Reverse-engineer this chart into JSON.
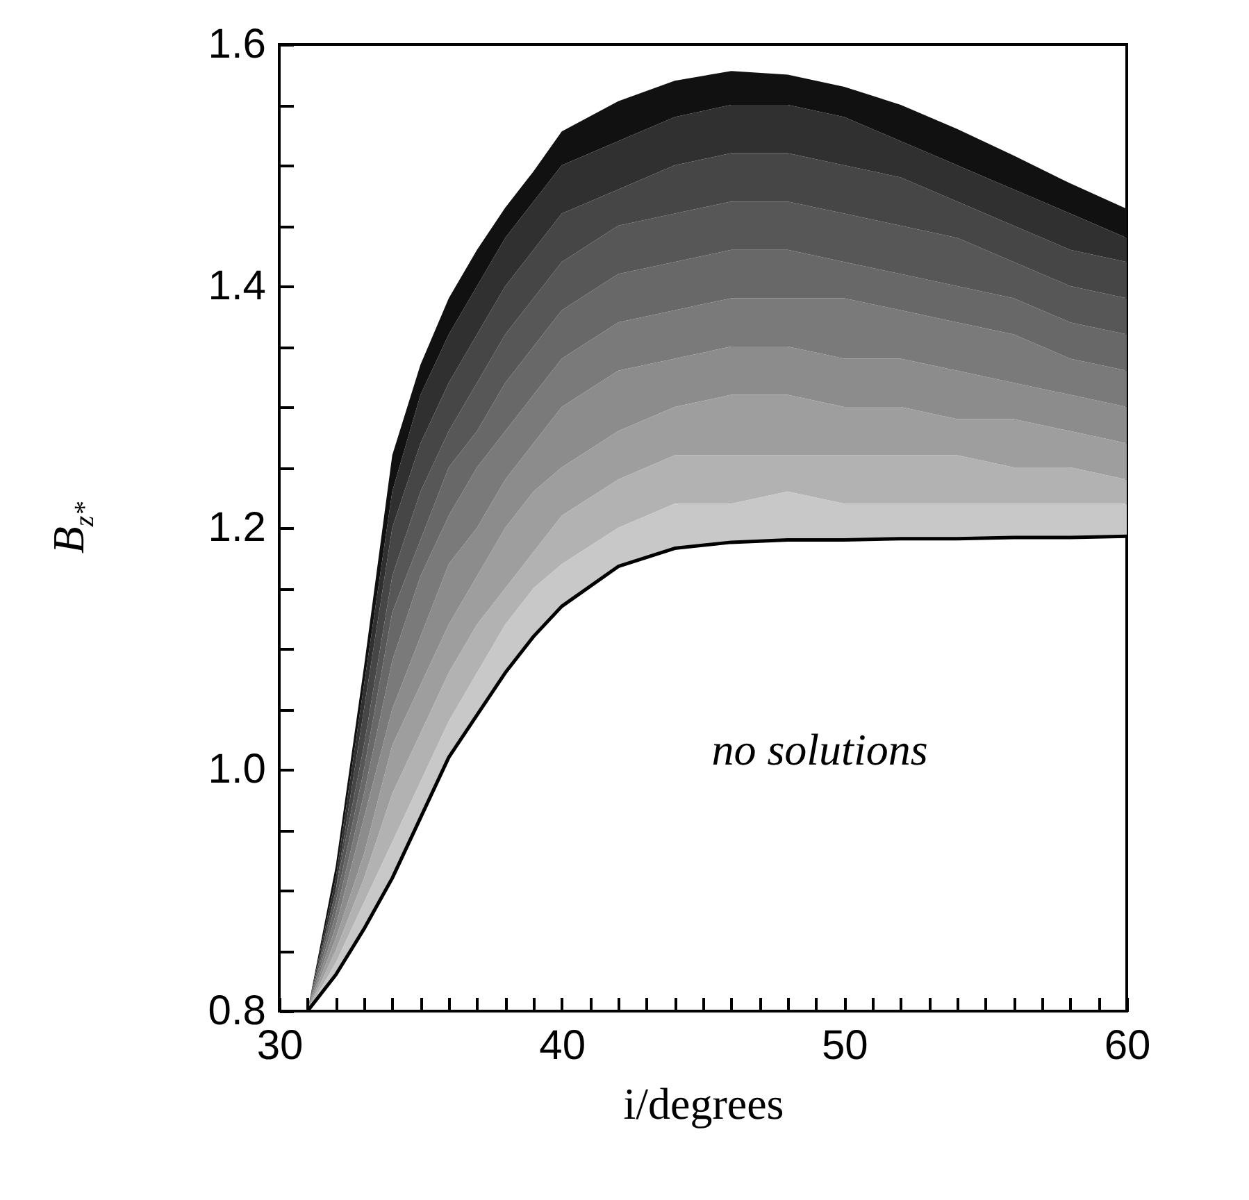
{
  "chart_data": {
    "type": "area",
    "xlabel": "i/degrees",
    "ylabel": "B$_{z*}$",
    "x": [
      31,
      32,
      33,
      34,
      35,
      36,
      37,
      38,
      39,
      40,
      42,
      44,
      46,
      48,
      50,
      52,
      54,
      56,
      58,
      60
    ],
    "series": [
      {
        "color": "#111111",
        "values": [
          0.8,
          0.92,
          1.085,
          1.26,
          1.335,
          1.39,
          1.43,
          1.465,
          1.495,
          1.528,
          1.553,
          1.57,
          1.578,
          1.575,
          1.565,
          1.55,
          1.53,
          1.508,
          1.485,
          1.464
        ]
      },
      {
        "color": "#303030",
        "values": [
          0.8,
          0.91,
          1.07,
          1.23,
          1.31,
          1.36,
          1.4,
          1.44,
          1.47,
          1.5,
          1.52,
          1.54,
          1.55,
          1.55,
          1.54,
          1.52,
          1.5,
          1.48,
          1.46,
          1.44
        ]
      },
      {
        "color": "#464646",
        "values": [
          0.8,
          0.9,
          1.05,
          1.2,
          1.27,
          1.32,
          1.36,
          1.4,
          1.43,
          1.46,
          1.48,
          1.5,
          1.51,
          1.51,
          1.5,
          1.49,
          1.47,
          1.45,
          1.43,
          1.42
        ]
      },
      {
        "color": "#575757",
        "values": [
          0.8,
          0.9,
          1.02,
          1.16,
          1.23,
          1.28,
          1.32,
          1.36,
          1.39,
          1.42,
          1.45,
          1.46,
          1.47,
          1.47,
          1.46,
          1.45,
          1.44,
          1.42,
          1.4,
          1.39
        ]
      },
      {
        "color": "#686868",
        "values": [
          0.8,
          0.89,
          1.0,
          1.13,
          1.19,
          1.25,
          1.28,
          1.32,
          1.35,
          1.38,
          1.41,
          1.42,
          1.43,
          1.43,
          1.42,
          1.41,
          1.4,
          1.39,
          1.37,
          1.36
        ]
      },
      {
        "color": "#7a7a7a",
        "values": [
          0.8,
          0.88,
          0.98,
          1.09,
          1.16,
          1.21,
          1.25,
          1.28,
          1.31,
          1.34,
          1.37,
          1.38,
          1.39,
          1.39,
          1.39,
          1.38,
          1.37,
          1.36,
          1.34,
          1.33
        ]
      },
      {
        "color": "#8c8c8c",
        "values": [
          0.8,
          0.87,
          0.96,
          1.05,
          1.11,
          1.17,
          1.2,
          1.24,
          1.27,
          1.3,
          1.33,
          1.34,
          1.35,
          1.35,
          1.34,
          1.34,
          1.33,
          1.32,
          1.31,
          1.3
        ]
      },
      {
        "color": "#9e9e9e",
        "values": [
          0.8,
          0.86,
          0.93,
          1.02,
          1.07,
          1.12,
          1.16,
          1.2,
          1.23,
          1.25,
          1.28,
          1.3,
          1.31,
          1.31,
          1.3,
          1.3,
          1.29,
          1.29,
          1.28,
          1.27
        ]
      },
      {
        "color": "#b2b2b2",
        "values": [
          0.8,
          0.85,
          0.91,
          0.98,
          1.03,
          1.08,
          1.12,
          1.15,
          1.18,
          1.21,
          1.24,
          1.26,
          1.26,
          1.26,
          1.26,
          1.26,
          1.26,
          1.25,
          1.25,
          1.24
        ]
      },
      {
        "color": "#c8c8c8",
        "values": [
          0.8,
          0.84,
          0.89,
          0.94,
          0.99,
          1.04,
          1.08,
          1.12,
          1.15,
          1.17,
          1.2,
          1.22,
          1.22,
          1.23,
          1.22,
          1.22,
          1.22,
          1.22,
          1.22,
          1.22
        ]
      },
      {
        "type": "line",
        "color": "#000000",
        "values": [
          0.8,
          0.83,
          0.868,
          0.91,
          0.96,
          1.01,
          1.045,
          1.08,
          1.11,
          1.135,
          1.168,
          1.183,
          1.188,
          1.19,
          1.19,
          1.191,
          1.191,
          1.192,
          1.192,
          1.193
        ]
      }
    ],
    "xlim": [
      30,
      60
    ],
    "xticks": [
      30,
      {
        "value": 31,
        "label": null
      },
      {
        "value": 32,
        "label": null
      },
      {
        "value": 33,
        "label": null
      },
      {
        "value": 34,
        "label": null
      },
      {
        "value": 35,
        "label": null
      },
      {
        "value": 36,
        "label": null
      },
      {
        "value": 37,
        "label": null
      },
      {
        "value": 38,
        "label": null
      },
      {
        "value": 39,
        "label": null
      },
      40,
      {
        "value": 41,
        "label": null
      },
      {
        "value": 42,
        "label": null
      },
      {
        "value": 43,
        "label": null
      },
      {
        "value": 44,
        "label": null
      },
      {
        "value": 45,
        "label": null
      },
      {
        "value": 46,
        "label": null
      },
      {
        "value": 47,
        "label": null
      },
      {
        "value": 48,
        "label": null
      },
      {
        "value": 49,
        "label": null
      },
      50,
      {
        "value": 51,
        "label": null
      },
      {
        "value": 52,
        "label": null
      },
      {
        "value": 53,
        "label": null
      },
      {
        "value": 54,
        "label": null
      },
      {
        "value": 55,
        "label": null
      },
      {
        "value": 56,
        "label": null
      },
      {
        "value": 57,
        "label": null
      },
      {
        "value": 58,
        "label": null
      },
      {
        "value": 59,
        "label": null
      },
      60
    ],
    "ylim": [
      0.8,
      1.6
    ],
    "yticks": [
      0.8,
      {
        "value": 0.85,
        "label": null
      },
      {
        "value": 0.9,
        "label": null
      },
      {
        "value": 0.95,
        "label": null
      },
      {
        "value": 1,
        "label": "1.0"
      },
      {
        "value": 1.05,
        "label": null
      },
      {
        "value": 1.1,
        "label": null
      },
      {
        "value": 1.15,
        "label": null
      },
      1.2,
      {
        "value": 1.25,
        "label": null
      },
      {
        "value": 1.3,
        "label": null
      },
      {
        "value": 1.35,
        "label": null
      },
      1.4,
      {
        "value": 1.45,
        "label": null
      },
      {
        "value": 1.5,
        "label": null
      },
      {
        "value": 1.55,
        "label": null
      },
      1.6
    ],
    "annotations": [
      "no solutions"
    ],
    "marker": "none",
    "line_style": "solid"
  }
}
